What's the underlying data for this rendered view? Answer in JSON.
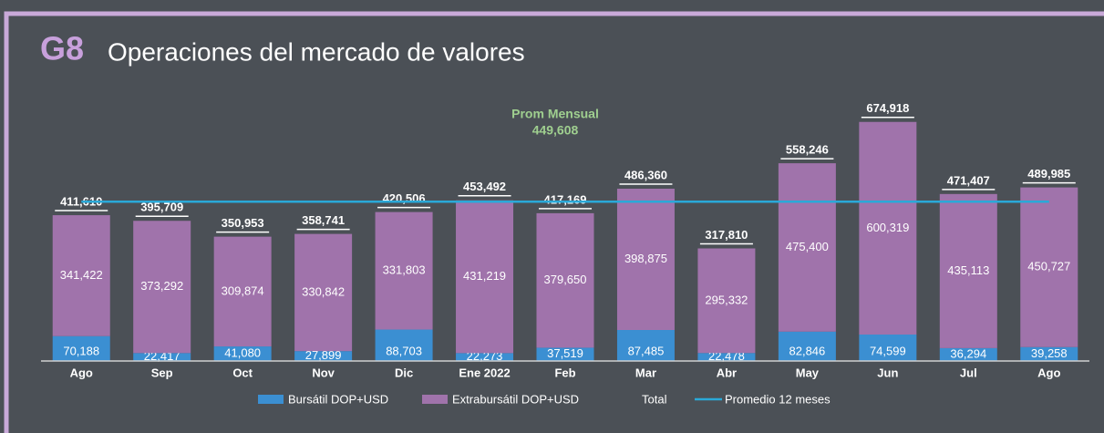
{
  "chart_data": {
    "type": "stacked-bar",
    "title_code": "G8",
    "title": "Operaciones del mercado de valores",
    "categories": [
      "Ago",
      "Sep",
      "Oct",
      "Nov",
      "Dic",
      "Ene 2022",
      "Feb",
      "Mar",
      "Abr",
      "May",
      "Jun",
      "Jul",
      "Ago"
    ],
    "ylim": [
      0,
      700000
    ],
    "series": [
      {
        "name": "Bursátil DOP+USD",
        "color": "#3b8fd2",
        "values": [
          70188,
          22417,
          41080,
          27899,
          88703,
          22273,
          37519,
          87485,
          22478,
          82846,
          74599,
          36294,
          39258
        ],
        "value_labels": [
          "70,188",
          "22,417",
          "41,080",
          "27,899",
          "88,703",
          "22,273",
          "37,519",
          "87,485",
          "22,478",
          "82,846",
          "74,599",
          "36,294",
          "39,258"
        ]
      },
      {
        "name": "Extrabursátil DOP+USD",
        "color": "#a073ab",
        "values": [
          341422,
          373292,
          309874,
          330842,
          331803,
          431219,
          379650,
          398875,
          295332,
          475400,
          600319,
          435113,
          450727
        ],
        "value_labels": [
          "341,422",
          "373,292",
          "309,874",
          "330,842",
          "331,803",
          "431,219",
          "379,650",
          "398,875",
          "295,332",
          "475,400",
          "600,319",
          "435,113",
          "450,727"
        ]
      },
      {
        "name": "Total",
        "color": "#ffffff",
        "values": [
          411610,
          395709,
          350953,
          358741,
          420506,
          453492,
          417169,
          486360,
          317810,
          558246,
          674918,
          471407,
          489985
        ],
        "value_labels": [
          "411,610",
          "395,709",
          "350,953",
          "358,741",
          "420,506",
          "453,492",
          "417,169",
          "486,360",
          "317,810",
          "558,246",
          "674,918",
          "471,407",
          "489,985"
        ]
      },
      {
        "name": "Promedio 12 meses",
        "color": "#2aa9d8",
        "type": "line",
        "values": [
          449608,
          449608,
          449608,
          449608,
          449608,
          449608,
          449608,
          449608,
          449608,
          449608,
          449608,
          449608,
          449608
        ]
      }
    ],
    "annotation": {
      "text": "Prom Mensual",
      "value_label": "449,608"
    }
  }
}
